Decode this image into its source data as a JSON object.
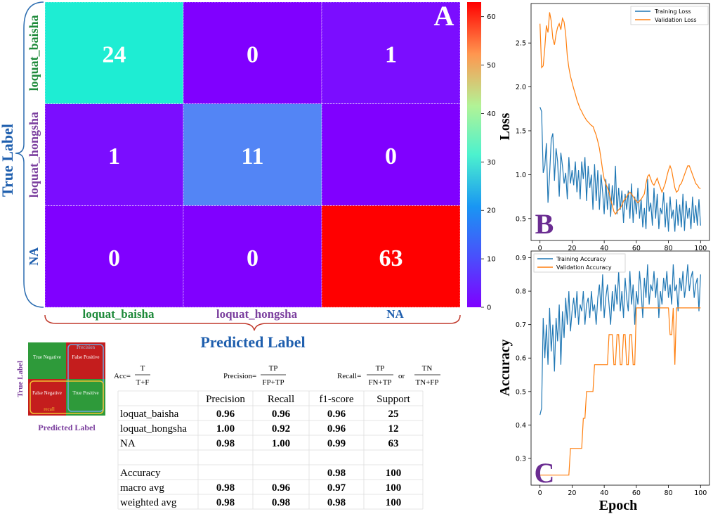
{
  "chart_data": [
    {
      "type": "heatmap",
      "panel_letter": "A",
      "ylabel": "True Label",
      "xlabel": "Predicted Label",
      "rows": [
        "loquat_baisha",
        "loquat_hongsha",
        "NA"
      ],
      "columns": [
        "loquat_baisha",
        "loquat_hongsha",
        "NA"
      ],
      "values": [
        [
          24,
          0,
          1
        ],
        [
          1,
          11,
          0
        ],
        [
          0,
          0,
          63
        ]
      ],
      "colorbar": {
        "min": 0,
        "max": 63,
        "ticks": [
          "0",
          "10",
          "20",
          "30",
          "40",
          "50",
          "60"
        ],
        "colormap": "rainbow"
      }
    },
    {
      "type": "line",
      "panel_letter": "B",
      "ylabel": "Loss",
      "xlim": [
        0,
        100
      ],
      "ylim": [
        0.25,
        2.95
      ],
      "xticks": [
        "0",
        "20",
        "40",
        "60",
        "80",
        "100"
      ],
      "yticks": [
        "0.5",
        "1.0",
        "1.5",
        "2.0",
        "2.5"
      ],
      "legend_position": "top-right",
      "series": [
        {
          "name": "Training Loss",
          "color": "#1f77b4",
          "x": [
            0,
            1,
            2,
            3,
            4,
            5,
            6,
            7,
            8,
            9,
            10,
            11,
            12,
            13,
            14,
            15,
            16,
            17,
            18,
            19,
            20,
            21,
            22,
            23,
            24,
            25,
            26,
            27,
            28,
            29,
            30,
            31,
            32,
            33,
            34,
            35,
            36,
            37,
            38,
            39,
            40,
            41,
            42,
            43,
            44,
            45,
            46,
            47,
            48,
            49,
            50,
            51,
            52,
            53,
            54,
            55,
            56,
            57,
            58,
            59,
            60,
            61,
            62,
            63,
            64,
            65,
            66,
            67,
            68,
            69,
            70,
            71,
            72,
            73,
            74,
            75,
            76,
            77,
            78,
            79,
            80,
            81,
            82,
            83,
            84,
            85,
            86,
            87,
            88,
            89,
            90,
            91,
            92,
            93,
            94,
            95,
            96,
            97,
            98,
            99,
            100
          ],
          "y": [
            1.77,
            1.72,
            1.02,
            1.1,
            1.36,
            0.68,
            1.0,
            1.4,
            1.47,
            0.93,
            1.3,
            1.15,
            0.75,
            1.25,
            1.1,
            0.9,
            1.02,
            0.72,
            1.2,
            0.9,
            1.05,
            0.88,
            1.15,
            0.8,
            1.05,
            0.72,
            1.15,
            0.95,
            1.2,
            0.7,
            1.1,
            0.85,
            1.0,
            0.6,
            1.12,
            0.7,
            1.05,
            0.6,
            1.0,
            0.8,
            0.55,
            0.95,
            0.6,
            0.9,
            0.52,
            0.88,
            0.65,
            1.1,
            0.55,
            0.85,
            0.6,
            0.82,
            0.45,
            0.78,
            0.6,
            0.82,
            0.5,
            0.9,
            0.45,
            0.75,
            0.55,
            0.85,
            0.5,
            0.72,
            0.4,
            0.62,
            0.38,
            0.95,
            0.58,
            0.68,
            0.42,
            0.85,
            0.5,
            0.78,
            0.38,
            0.62,
            0.55,
            0.8,
            0.4,
            0.68,
            0.35,
            0.75,
            0.5,
            0.6,
            0.35,
            0.72,
            0.42,
            0.66,
            0.4,
            0.78,
            0.36,
            0.7,
            0.5,
            0.62,
            0.38,
            0.75,
            0.45,
            0.65,
            0.42,
            0.72,
            0.42
          ]
        },
        {
          "name": "Validation Loss",
          "color": "#ff7f0e",
          "x": [
            0,
            1,
            2,
            3,
            4,
            5,
            6,
            7,
            8,
            9,
            10,
            11,
            12,
            13,
            14,
            15,
            16,
            17,
            18,
            19,
            20,
            21,
            22,
            23,
            24,
            25,
            26,
            27,
            28,
            29,
            30,
            31,
            32,
            33,
            34,
            35,
            36,
            37,
            38,
            39,
            40,
            41,
            42,
            43,
            44,
            45,
            46,
            47,
            48,
            49,
            50,
            51,
            52,
            53,
            54,
            55,
            56,
            57,
            58,
            59,
            60,
            61,
            62,
            63,
            64,
            65,
            66,
            67,
            68,
            69,
            70,
            71,
            72,
            73,
            74,
            75,
            76,
            77,
            78,
            79,
            80,
            81,
            82,
            83,
            84,
            85,
            86,
            87,
            88,
            89,
            90,
            91,
            92,
            93,
            94,
            95,
            96,
            97,
            98,
            99,
            100
          ],
          "y": [
            2.72,
            2.22,
            2.24,
            2.45,
            2.7,
            2.62,
            2.85,
            2.75,
            2.55,
            2.48,
            2.6,
            2.68,
            2.72,
            2.65,
            2.78,
            2.74,
            2.6,
            2.35,
            2.22,
            2.12,
            2.05,
            1.98,
            1.92,
            1.85,
            1.8,
            1.75,
            1.72,
            1.68,
            1.65,
            1.62,
            1.6,
            1.58,
            1.56,
            1.55,
            1.5,
            1.45,
            1.38,
            1.3,
            1.18,
            1.05,
            0.95,
            0.9,
            0.85,
            0.8,
            0.72,
            0.65,
            0.58,
            0.55,
            0.58,
            0.6,
            0.62,
            0.65,
            0.7,
            0.72,
            0.75,
            0.78,
            0.8,
            0.78,
            0.75,
            0.72,
            0.7,
            0.68,
            0.7,
            0.72,
            0.75,
            0.78,
            0.9,
            0.98,
            1.0,
            0.95,
            0.9,
            0.88,
            0.92,
            0.96,
            0.9,
            0.85,
            0.8,
            0.85,
            0.9,
            0.98,
            1.05,
            1.1,
            1.05,
            0.95,
            0.85,
            0.8,
            0.82,
            0.88,
            0.9,
            0.95,
            1.0,
            1.05,
            1.1,
            1.1,
            1.05,
            1.0,
            0.95,
            0.9,
            0.88,
            0.85,
            0.84
          ]
        }
      ]
    },
    {
      "type": "line",
      "panel_letter": "C",
      "ylabel": "Accuracy",
      "xlabel": "Epoch",
      "xlim": [
        0,
        100
      ],
      "ylim": [
        0.22,
        0.92
      ],
      "xticks": [
        "0",
        "20",
        "40",
        "60",
        "80",
        "100"
      ],
      "yticks": [
        "0.3",
        "0.4",
        "0.5",
        "0.6",
        "0.7",
        "0.8",
        "0.9"
      ],
      "legend_position": "top-left",
      "series": [
        {
          "name": "Training Accuracy",
          "color": "#1f77b4",
          "x": [
            0,
            1,
            2,
            3,
            4,
            5,
            6,
            7,
            8,
            9,
            10,
            11,
            12,
            13,
            14,
            15,
            16,
            17,
            18,
            19,
            20,
            21,
            22,
            23,
            24,
            25,
            26,
            27,
            28,
            29,
            30,
            31,
            32,
            33,
            34,
            35,
            36,
            37,
            38,
            39,
            40,
            41,
            42,
            43,
            44,
            45,
            46,
            47,
            48,
            49,
            50,
            51,
            52,
            53,
            54,
            55,
            56,
            57,
            58,
            59,
            60,
            61,
            62,
            63,
            64,
            65,
            66,
            67,
            68,
            69,
            70,
            71,
            72,
            73,
            74,
            75,
            76,
            77,
            78,
            79,
            80,
            81,
            82,
            83,
            84,
            85,
            86,
            87,
            88,
            89,
            90,
            91,
            92,
            93,
            94,
            95,
            96,
            97,
            98,
            99,
            100
          ],
          "y": [
            0.43,
            0.45,
            0.72,
            0.6,
            0.7,
            0.58,
            0.75,
            0.62,
            0.7,
            0.56,
            0.72,
            0.65,
            0.76,
            0.58,
            0.74,
            0.66,
            0.78,
            0.7,
            0.8,
            0.68,
            0.74,
            0.78,
            0.72,
            0.8,
            0.7,
            0.76,
            0.74,
            0.8,
            0.7,
            0.76,
            0.78,
            0.72,
            0.8,
            0.74,
            0.76,
            0.7,
            0.78,
            0.82,
            0.74,
            0.85,
            0.72,
            0.78,
            0.82,
            0.76,
            0.7,
            0.8,
            0.74,
            0.82,
            0.76,
            0.86,
            0.74,
            0.8,
            0.72,
            0.84,
            0.78,
            0.74,
            0.86,
            0.76,
            0.82,
            0.7,
            0.8,
            0.76,
            0.86,
            0.8,
            0.72,
            0.84,
            0.78,
            0.88,
            0.76,
            0.82,
            0.8,
            0.86,
            0.78,
            0.84,
            0.72,
            0.8,
            0.76,
            0.84,
            0.8,
            0.86,
            0.78,
            0.82,
            0.76,
            0.88,
            0.8,
            0.82,
            0.74,
            0.84,
            0.8,
            0.86,
            0.78,
            0.82,
            0.88,
            0.8,
            0.84,
            0.86,
            0.78,
            0.82,
            0.84,
            0.74,
            0.85
          ]
        },
        {
          "name": "Validation Accuracy",
          "color": "#ff7f0e",
          "x": [
            0,
            18,
            19,
            26,
            27,
            28,
            29,
            33,
            34,
            38,
            39,
            42,
            43,
            44,
            45,
            46,
            47,
            48,
            49,
            50,
            51,
            52,
            53,
            54,
            55,
            56,
            57,
            58,
            59,
            60,
            61,
            62,
            63,
            64,
            65,
            66,
            67,
            68,
            69,
            70,
            71,
            72,
            73,
            74,
            75,
            76,
            77,
            78,
            79,
            80,
            81,
            82,
            83,
            84,
            85,
            86,
            87,
            88,
            89,
            90,
            91,
            92,
            93,
            94,
            95,
            96,
            97,
            98,
            99,
            100
          ],
          "y": [
            0.25,
            0.25,
            0.33,
            0.33,
            0.42,
            0.42,
            0.5,
            0.5,
            0.58,
            0.58,
            0.58,
            0.58,
            0.67,
            0.67,
            0.67,
            0.58,
            0.58,
            0.67,
            0.67,
            0.58,
            0.58,
            0.67,
            0.67,
            0.58,
            0.58,
            0.67,
            0.67,
            0.58,
            0.58,
            0.75,
            0.75,
            0.75,
            0.75,
            0.75,
            0.75,
            0.75,
            0.75,
            0.75,
            0.75,
            0.75,
            0.75,
            0.75,
            0.75,
            0.75,
            0.75,
            0.75,
            0.75,
            0.75,
            0.75,
            0.75,
            0.67,
            0.67,
            0.75,
            0.58,
            0.75,
            0.75,
            0.75,
            0.75,
            0.75,
            0.75,
            0.75,
            0.75,
            0.75,
            0.75,
            0.75,
            0.75,
            0.75,
            0.75,
            0.75,
            0.75
          ]
        }
      ]
    }
  ],
  "schematic": {
    "ylabel": "True Label",
    "xlabel": "Predicted Label",
    "cells": [
      "True Negative",
      "False Positive",
      "False Negative",
      "True Positive"
    ],
    "precision_label": "Precision",
    "recall_label": "recall"
  },
  "formulas": {
    "acc_prefix": "Acc=",
    "acc_num": "T",
    "acc_den": "T+F",
    "precision_prefix": "Precision=",
    "precision_num": "TP",
    "precision_den": "FP+TP",
    "recall_prefix": "Recall=",
    "recall_num1": "TP",
    "recall_den1": "FN+TP",
    "recall_or": "or",
    "recall_num2": "TN",
    "recall_den2": "TN+FP"
  },
  "report_table": {
    "headers": [
      "",
      "Precision",
      "Recall",
      "f1-score",
      "Support"
    ],
    "rows": [
      [
        "loquat_baisha",
        "0.96",
        "0.96",
        "0.96",
        "25"
      ],
      [
        "loquat_hongsha",
        "1.00",
        "0.92",
        "0.96",
        "12"
      ],
      [
        "NA",
        "0.98",
        "1.00",
        "0.99",
        "63"
      ],
      [
        "",
        "",
        "",
        "",
        ""
      ],
      [
        "Accuracy",
        "",
        "",
        "0.98",
        "100"
      ],
      [
        "macro avg",
        "0.98",
        "0.96",
        "0.97",
        "100"
      ],
      [
        "weighted avg",
        "0.98",
        "0.98",
        "0.98",
        "100"
      ]
    ]
  }
}
